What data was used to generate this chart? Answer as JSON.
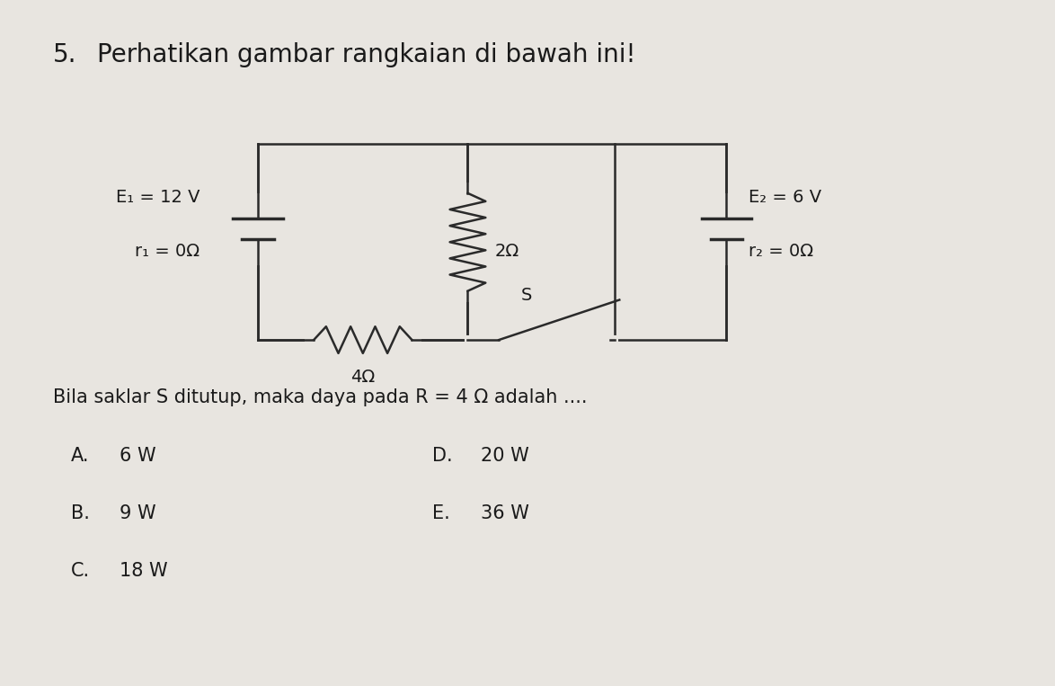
{
  "background_color": "#e8e5e0",
  "title_number": "5.",
  "title_text": "Perhatikan gambar rangkaian di bawah ini!",
  "title_fontsize": 20,
  "circuit": {
    "line_color": "#2a2a2a",
    "line_width": 1.8
  },
  "labels": {
    "E1_line1": "E₁ = 12 V",
    "E1_line2": "r₁ = 0Ω",
    "R2_val": "2Ω",
    "R4_val": "4Ω",
    "S_label": "S",
    "E2_line1": "E₂ = 6 V",
    "E2_line2": "r₂ = 0Ω"
  },
  "question_text": "Bila saklar S ditutup, maka daya pada R = 4 Ω adalah ....",
  "options_left": [
    {
      "label": "A.",
      "text": "6 W"
    },
    {
      "label": "B.",
      "text": "9 W"
    },
    {
      "label": "C.",
      "text": "18 W"
    }
  ],
  "options_right": [
    {
      "label": "D.",
      "text": "20 W"
    },
    {
      "label": "E.",
      "text": "36 W"
    }
  ]
}
